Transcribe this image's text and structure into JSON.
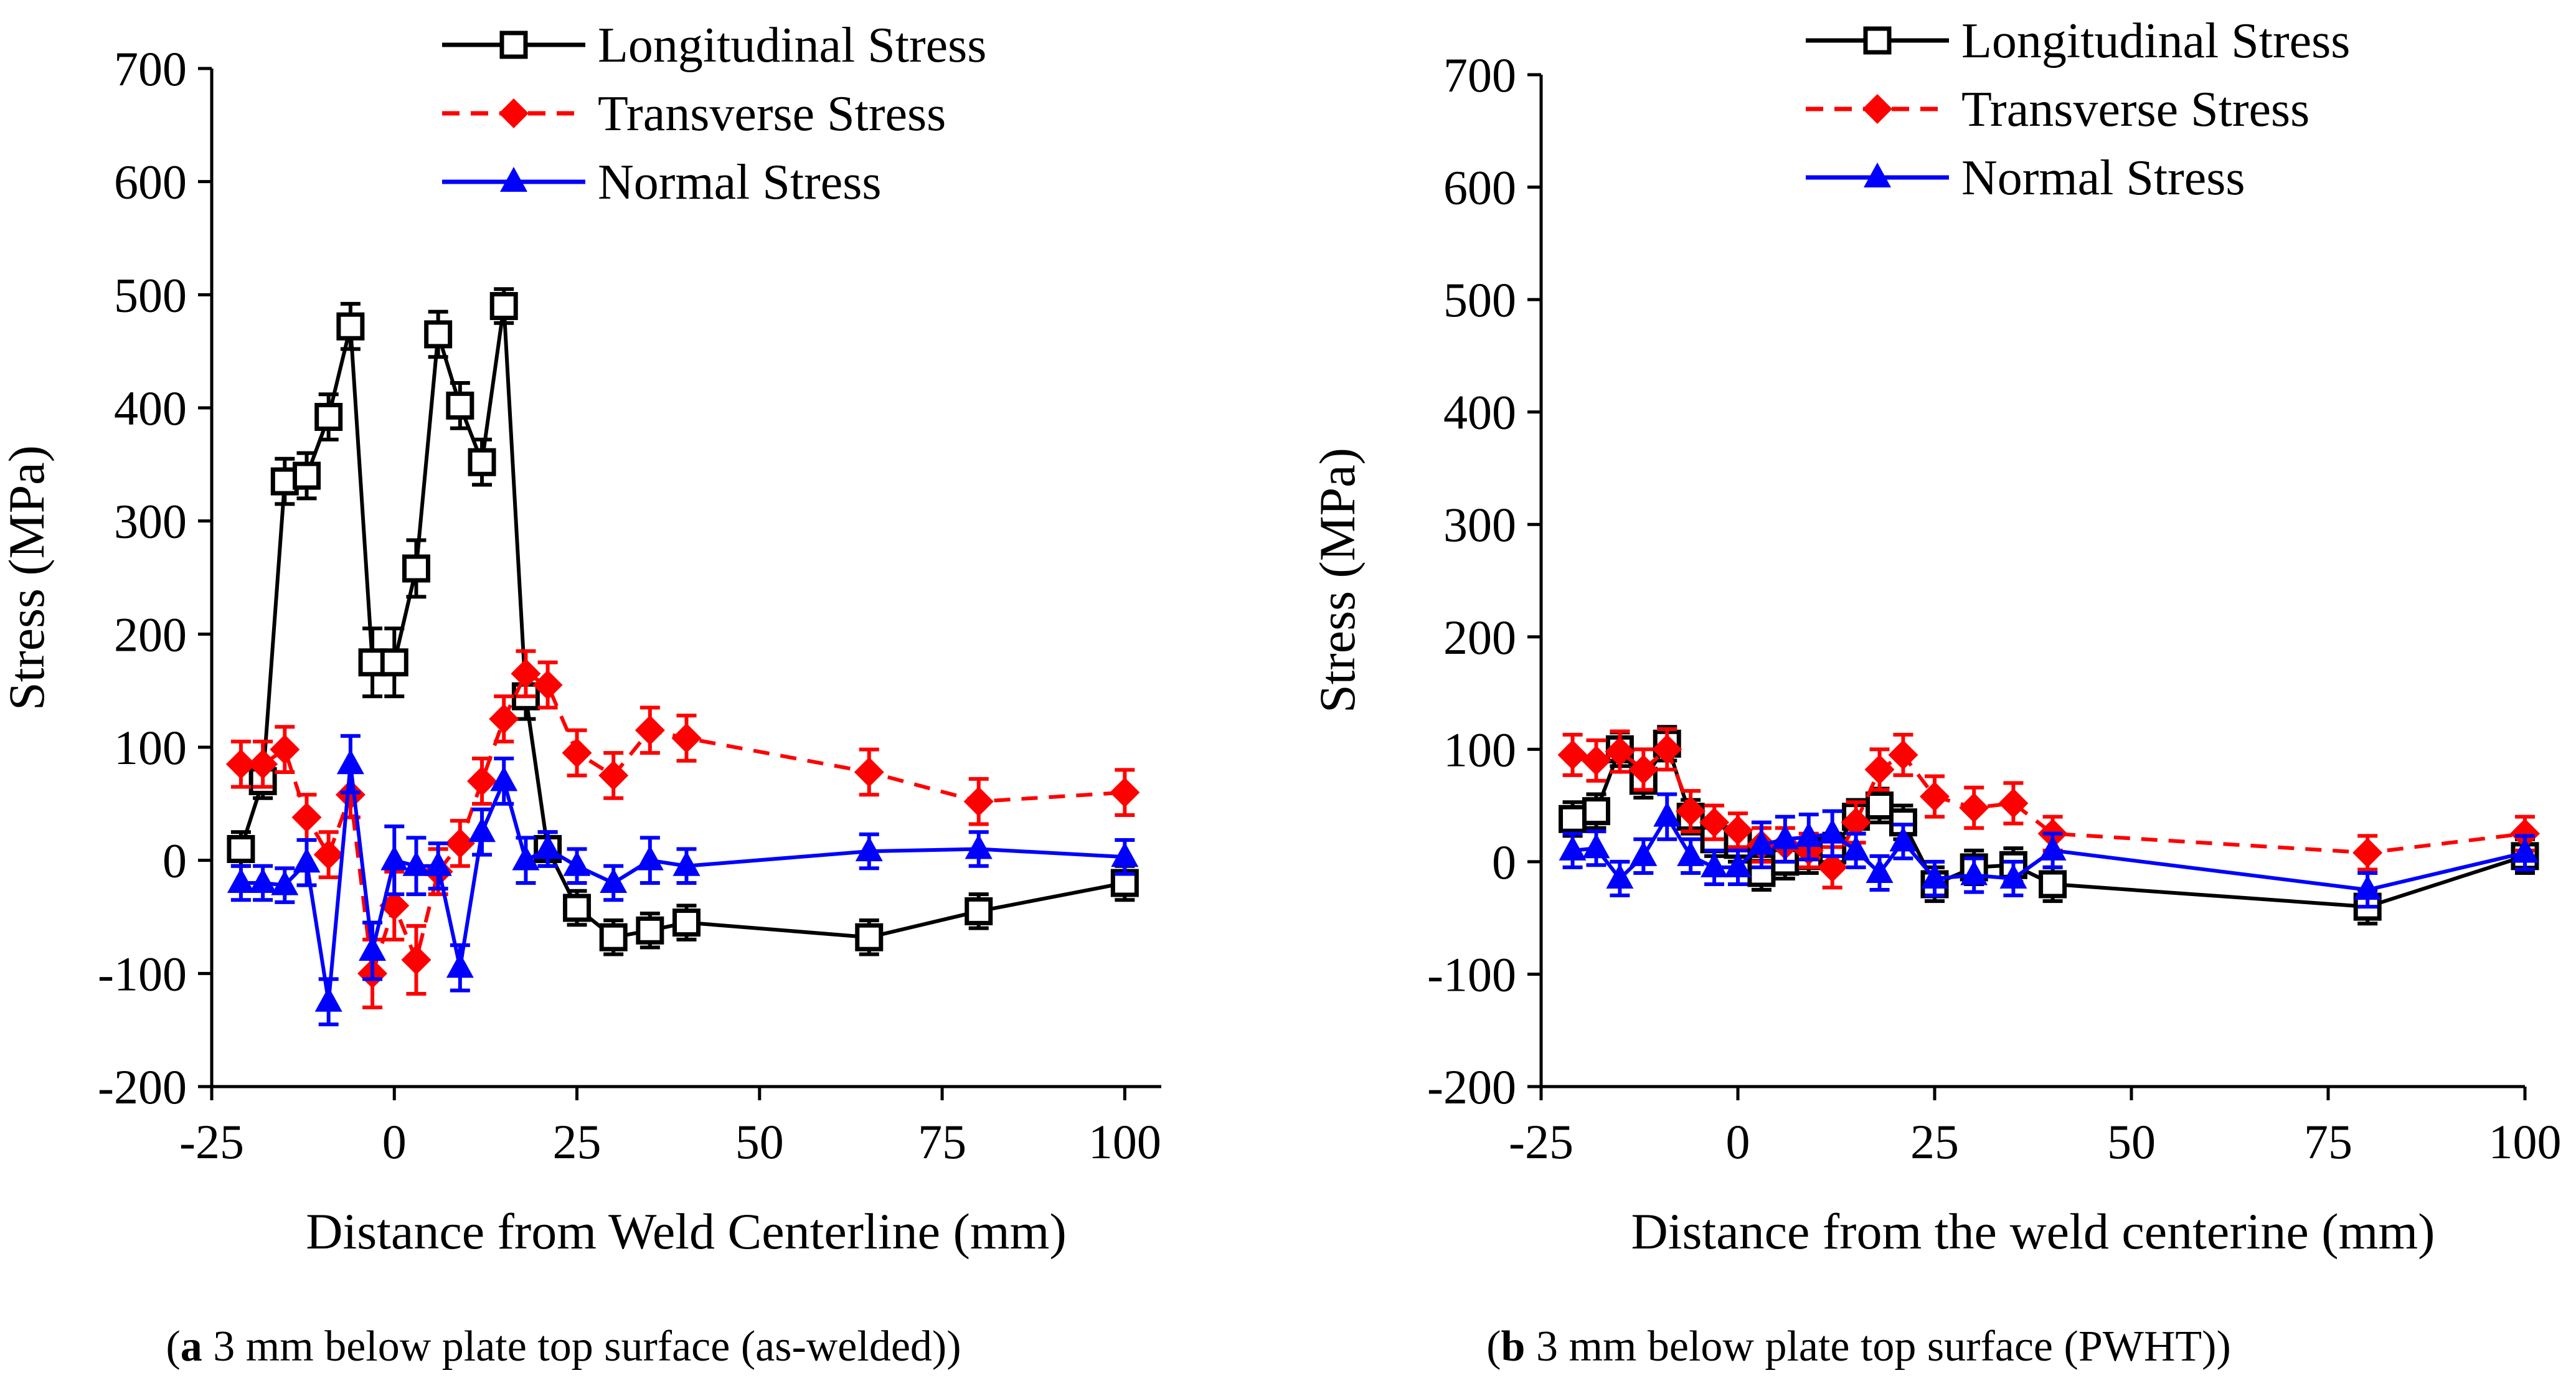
{
  "figure": {
    "panels": [
      {
        "caption_letter": "a",
        "caption_text": " 3 mm below plate top surface (as-welded)"
      },
      {
        "caption_letter": "b",
        "caption_text": " 3 mm below plate top surface (PWHT)"
      }
    ]
  },
  "chart_data": [
    {
      "type": "line",
      "panel": "a",
      "title": "",
      "xlabel": "Distance from Weld Centerline (mm)",
      "ylabel": "Stress (MPa)",
      "xlim": [
        -25,
        105
      ],
      "ylim": [
        -200,
        700
      ],
      "xticks": [
        -25,
        0,
        25,
        50,
        75,
        100
      ],
      "xtick_labels": [
        "-25",
        "0",
        "25",
        "50",
        "75",
        "100"
      ],
      "yticks": [
        -200,
        -100,
        0,
        100,
        200,
        300,
        400,
        500,
        600,
        700
      ],
      "ytick_labels": [
        "-200",
        "-100",
        "0",
        "100",
        "200",
        "300",
        "400",
        "500",
        "600",
        "700"
      ],
      "legend_position": "top-center",
      "grid": false,
      "series": [
        {
          "name": "Longitudinal Stress",
          "color": "#000000",
          "dashed": false,
          "marker": "open-square",
          "x": [
            -21,
            -18,
            -15,
            -12,
            -9,
            -6,
            -3,
            0,
            3,
            6,
            9,
            12,
            15,
            18,
            21,
            25,
            30,
            35,
            40,
            65,
            80,
            100
          ],
          "y": [
            10,
            70,
            335,
            340,
            392,
            472,
            175,
            175,
            258,
            465,
            402,
            352,
            490,
            145,
            10,
            -42,
            -68,
            -62,
            -55,
            -68,
            -45,
            -20
          ],
          "err": [
            15,
            15,
            20,
            20,
            20,
            20,
            30,
            30,
            25,
            20,
            20,
            20,
            15,
            20,
            15,
            15,
            15,
            15,
            15,
            15,
            15,
            15
          ]
        },
        {
          "name": "Transverse Stress",
          "color": "#ff0000",
          "dashed": true,
          "marker": "diamond",
          "x": [
            -21,
            -18,
            -15,
            -12,
            -9,
            -6,
            -3,
            0,
            3,
            6,
            9,
            12,
            15,
            18,
            21,
            25,
            30,
            35,
            40,
            65,
            80,
            100
          ],
          "y": [
            85,
            85,
            98,
            38,
            5,
            58,
            -100,
            -40,
            -88,
            -10,
            15,
            70,
            125,
            165,
            155,
            95,
            75,
            115,
            108,
            78,
            52,
            60
          ],
          "err": [
            20,
            20,
            20,
            20,
            20,
            20,
            30,
            30,
            30,
            20,
            20,
            20,
            20,
            20,
            20,
            20,
            20,
            20,
            20,
            20,
            20,
            20
          ]
        },
        {
          "name": "Normal Stress",
          "color": "#0000ff",
          "dashed": false,
          "marker": "triangle",
          "x": [
            -21,
            -18,
            -15,
            -12,
            -9,
            -6,
            -3,
            0,
            3,
            6,
            9,
            12,
            15,
            18,
            21,
            25,
            30,
            35,
            40,
            65,
            80,
            100
          ],
          "y": [
            -20,
            -20,
            -22,
            -2,
            -125,
            85,
            -80,
            0,
            -5,
            -5,
            -95,
            25,
            70,
            0,
            10,
            -5,
            -20,
            0,
            -5,
            8,
            10,
            3
          ],
          "err": [
            15,
            15,
            15,
            20,
            20,
            25,
            25,
            30,
            25,
            20,
            20,
            20,
            20,
            20,
            15,
            15,
            15,
            20,
            15,
            15,
            15,
            15
          ]
        }
      ]
    },
    {
      "type": "line",
      "panel": "b",
      "title": "",
      "xlabel": "Distance from the weld centerine (mm)",
      "ylabel": "Stress (MPa)",
      "xlim": [
        -25,
        100
      ],
      "ylim": [
        -200,
        700
      ],
      "xticks": [
        -25,
        0,
        25,
        50,
        75,
        100
      ],
      "xtick_labels": [
        "-25",
        "0",
        "25",
        "50",
        "75",
        "100"
      ],
      "yticks": [
        -200,
        -100,
        0,
        100,
        200,
        300,
        400,
        500,
        600,
        700
      ],
      "ytick_labels": [
        "-200",
        "-100",
        "0",
        "100",
        "200",
        "300",
        "400",
        "500",
        "600",
        "700"
      ],
      "legend_position": "top-right",
      "grid": false,
      "series": [
        {
          "name": "Longitudinal Stress",
          "color": "#000000",
          "dashed": false,
          "marker": "open-square",
          "x": [
            -21,
            -18,
            -15,
            -12,
            -9,
            -6,
            -3,
            0,
            3,
            6,
            9,
            12,
            15,
            18,
            21,
            25,
            30,
            35,
            40,
            80,
            100
          ],
          "y": [
            38,
            45,
            100,
            72,
            105,
            40,
            20,
            15,
            -10,
            0,
            5,
            10,
            40,
            50,
            35,
            -20,
            -5,
            -3,
            -20,
            -40,
            5
          ],
          "err": [
            15,
            15,
            15,
            15,
            15,
            15,
            15,
            15,
            15,
            15,
            15,
            15,
            15,
            15,
            15,
            15,
            15,
            15,
            15,
            15,
            15
          ]
        },
        {
          "name": "Transverse Stress",
          "color": "#ff0000",
          "dashed": true,
          "marker": "diamond",
          "x": [
            -21,
            -18,
            -15,
            -12,
            -9,
            -6,
            -3,
            0,
            3,
            6,
            9,
            12,
            15,
            18,
            21,
            25,
            30,
            35,
            40,
            80,
            100
          ],
          "y": [
            95,
            90,
            98,
            82,
            100,
            45,
            35,
            28,
            15,
            15,
            10,
            -5,
            35,
            82,
            95,
            58,
            48,
            52,
            25,
            8,
            25
          ],
          "err": [
            18,
            18,
            18,
            18,
            18,
            18,
            15,
            15,
            15,
            15,
            15,
            18,
            18,
            18,
            18,
            18,
            18,
            18,
            15,
            15,
            15
          ]
        },
        {
          "name": "Normal Stress",
          "color": "#0000ff",
          "dashed": false,
          "marker": "triangle",
          "x": [
            -21,
            -18,
            -15,
            -12,
            -9,
            -6,
            -3,
            0,
            3,
            6,
            9,
            12,
            15,
            18,
            21,
            25,
            30,
            35,
            40,
            80,
            100
          ],
          "y": [
            10,
            12,
            -15,
            5,
            40,
            5,
            -5,
            -5,
            15,
            20,
            22,
            25,
            10,
            -10,
            18,
            -15,
            -12,
            -15,
            10,
            -25,
            8
          ],
          "err": [
            15,
            15,
            15,
            15,
            20,
            15,
            15,
            15,
            20,
            20,
            20,
            20,
            15,
            15,
            15,
            15,
            15,
            15,
            15,
            15,
            15
          ]
        }
      ]
    }
  ]
}
